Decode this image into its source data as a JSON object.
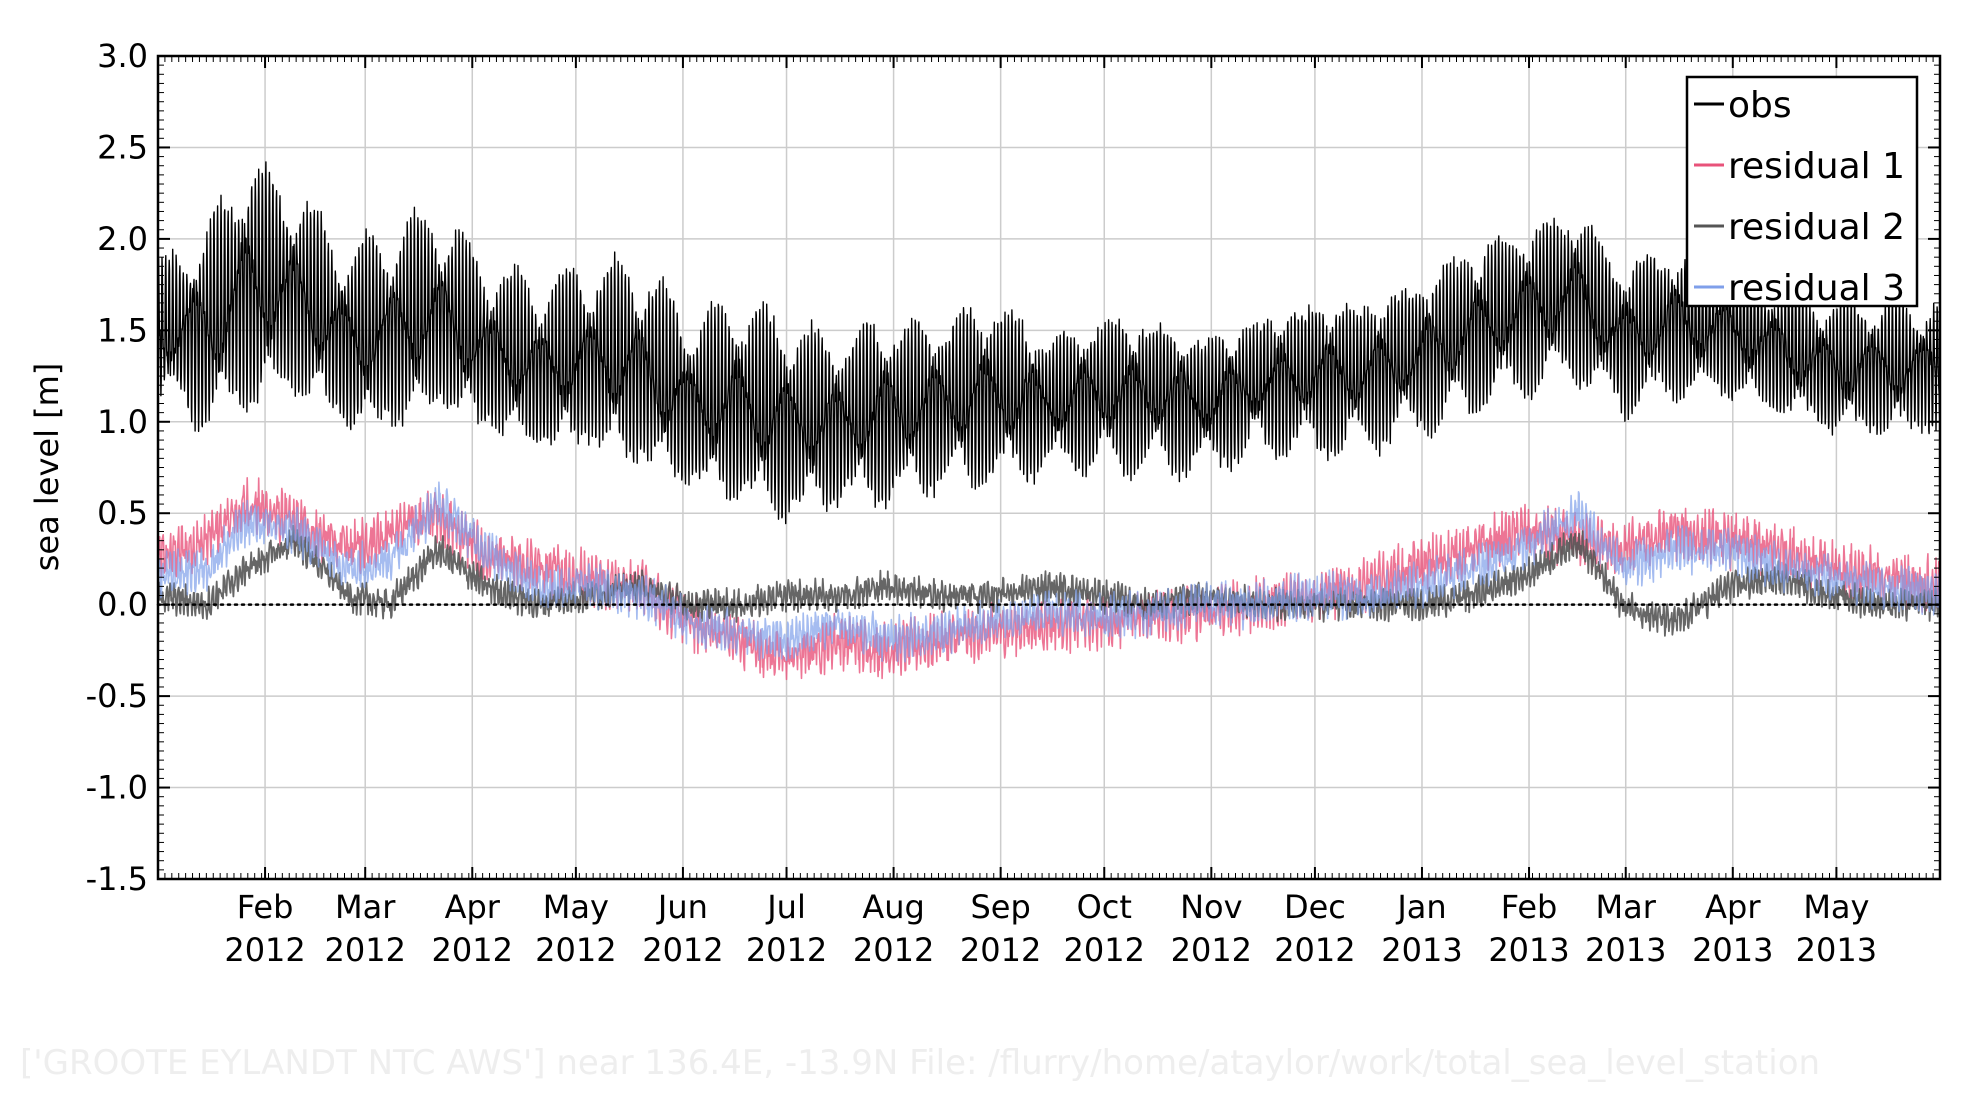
{
  "chart_data": {
    "type": "line",
    "title": "",
    "xlabel": "",
    "ylabel": "sea level [m]",
    "x_range": [
      "2012-01-01",
      "2013-05-31"
    ],
    "ylim": [
      -1.5,
      3.0
    ],
    "yticks": [
      {
        "value": -1.5,
        "label": "-1.5"
      },
      {
        "value": -1.0,
        "label": "-1.0"
      },
      {
        "value": -0.5,
        "label": "-0.5"
      },
      {
        "value": 0.0,
        "label": "0.0"
      },
      {
        "value": 0.5,
        "label": "0.5"
      },
      {
        "value": 1.0,
        "label": "1.0"
      },
      {
        "value": 1.5,
        "label": "1.5"
      },
      {
        "value": 2.0,
        "label": "2.0"
      },
      {
        "value": 2.5,
        "label": "2.5"
      },
      {
        "value": 3.0,
        "label": "3.0"
      }
    ],
    "xticks": [
      {
        "date": "2012-02-01",
        "month": "Feb",
        "year": "2012"
      },
      {
        "date": "2012-03-01",
        "month": "Mar",
        "year": "2012"
      },
      {
        "date": "2012-04-01",
        "month": "Apr",
        "year": "2012"
      },
      {
        "date": "2012-05-01",
        "month": "May",
        "year": "2012"
      },
      {
        "date": "2012-06-01",
        "month": "Jun",
        "year": "2012"
      },
      {
        "date": "2012-07-01",
        "month": "Jul",
        "year": "2012"
      },
      {
        "date": "2012-08-01",
        "month": "Aug",
        "year": "2012"
      },
      {
        "date": "2012-09-01",
        "month": "Sep",
        "year": "2012"
      },
      {
        "date": "2012-10-01",
        "month": "Oct",
        "year": "2012"
      },
      {
        "date": "2012-11-01",
        "month": "Nov",
        "year": "2012"
      },
      {
        "date": "2012-12-01",
        "month": "Dec",
        "year": "2012"
      },
      {
        "date": "2013-01-01",
        "month": "Jan",
        "year": "2013"
      },
      {
        "date": "2013-02-01",
        "month": "Feb",
        "year": "2013"
      },
      {
        "date": "2013-03-01",
        "month": "Mar",
        "year": "2013"
      },
      {
        "date": "2013-04-01",
        "month": "Apr",
        "year": "2013"
      },
      {
        "date": "2013-05-01",
        "month": "May",
        "year": "2013"
      }
    ],
    "grid": true,
    "zero_line": {
      "y": 0.0,
      "style": "dotted"
    },
    "legend": {
      "position": "top-right"
    },
    "series": [
      {
        "name": "obs",
        "color": "#000000",
        "x": [
          "2012-01-01",
          "2012-01-15",
          "2012-01-27",
          "2012-02-10",
          "2012-02-25",
          "2012-03-08",
          "2012-03-22",
          "2012-04-05",
          "2012-04-20",
          "2012-05-05",
          "2012-05-20",
          "2012-06-03",
          "2012-06-18",
          "2012-07-01",
          "2012-07-15",
          "2012-07-30",
          "2012-08-15",
          "2012-08-30",
          "2012-09-15",
          "2012-09-30",
          "2012-10-15",
          "2012-10-30",
          "2012-11-15",
          "2012-11-30",
          "2012-12-15",
          "2012-12-30",
          "2013-01-15",
          "2013-01-30",
          "2013-02-15",
          "2013-02-28",
          "2013-03-15",
          "2013-03-31",
          "2013-04-15",
          "2013-04-30",
          "2013-05-15",
          "2013-05-31"
        ],
        "y_high": [
          1.9,
          2.1,
          2.5,
          2.3,
          2.0,
          2.1,
          2.2,
          1.9,
          1.8,
          1.9,
          1.9,
          1.6,
          1.7,
          1.6,
          1.5,
          1.6,
          1.6,
          1.7,
          1.5,
          1.6,
          1.6,
          1.5,
          1.6,
          1.7,
          1.7,
          1.8,
          2.0,
          2.1,
          2.2,
          1.9,
          2.0,
          1.9,
          1.8,
          1.7,
          1.7,
          1.7
        ],
        "y_low": [
          1.1,
          0.9,
          1.0,
          1.1,
          0.9,
          0.9,
          1.0,
          0.9,
          0.8,
          0.8,
          0.7,
          0.6,
          0.5,
          0.4,
          0.5,
          0.5,
          0.6,
          0.6,
          0.7,
          0.7,
          0.7,
          0.7,
          0.8,
          0.8,
          0.8,
          0.9,
          1.0,
          1.1,
          1.2,
          1.0,
          1.1,
          1.1,
          1.0,
          0.9,
          0.9,
          0.9
        ]
      },
      {
        "name": "residual 1",
        "color": "#e8527a",
        "x": [
          "2012-01-01",
          "2012-01-15",
          "2012-01-27",
          "2012-02-10",
          "2012-02-25",
          "2012-03-08",
          "2012-03-22",
          "2012-04-05",
          "2012-04-20",
          "2012-05-05",
          "2012-05-20",
          "2012-06-03",
          "2012-06-18",
          "2012-07-01",
          "2012-07-15",
          "2012-07-30",
          "2012-08-15",
          "2012-08-30",
          "2012-09-15",
          "2012-09-30",
          "2012-10-15",
          "2012-10-30",
          "2012-11-15",
          "2012-11-30",
          "2012-12-15",
          "2012-12-30",
          "2013-01-15",
          "2013-01-30",
          "2013-02-15",
          "2013-02-28",
          "2013-03-15",
          "2013-03-31",
          "2013-04-15",
          "2013-04-30",
          "2013-05-15",
          "2013-05-31"
        ],
        "y": [
          0.25,
          0.35,
          0.55,
          0.45,
          0.3,
          0.4,
          0.5,
          0.25,
          0.2,
          0.15,
          0.1,
          -0.1,
          -0.2,
          -0.3,
          -0.2,
          -0.25,
          -0.2,
          -0.15,
          -0.1,
          -0.1,
          -0.05,
          -0.05,
          0.0,
          0.05,
          0.1,
          0.2,
          0.3,
          0.4,
          0.35,
          0.3,
          0.4,
          0.35,
          0.3,
          0.2,
          0.15,
          0.1
        ]
      },
      {
        "name": "residual 2",
        "color": "#555555",
        "x": [
          "2012-01-01",
          "2012-01-15",
          "2012-01-27",
          "2012-02-10",
          "2012-02-25",
          "2012-03-08",
          "2012-03-22",
          "2012-04-05",
          "2012-04-20",
          "2012-05-05",
          "2012-05-20",
          "2012-06-03",
          "2012-06-18",
          "2012-07-01",
          "2012-07-15",
          "2012-07-30",
          "2012-08-15",
          "2012-08-30",
          "2012-09-15",
          "2012-09-30",
          "2012-10-15",
          "2012-10-30",
          "2012-11-15",
          "2012-11-30",
          "2012-12-15",
          "2012-12-30",
          "2013-01-15",
          "2013-01-30",
          "2013-02-15",
          "2013-02-28",
          "2013-03-15",
          "2013-03-31",
          "2013-04-15",
          "2013-04-30",
          "2013-05-15",
          "2013-05-31"
        ],
        "y": [
          0.05,
          0.0,
          0.2,
          0.35,
          0.05,
          0.0,
          0.3,
          0.1,
          0.0,
          0.05,
          0.1,
          0.0,
          0.0,
          0.05,
          0.05,
          0.1,
          0.05,
          0.05,
          0.1,
          0.05,
          0.0,
          0.05,
          0.0,
          0.0,
          0.0,
          0.0,
          0.05,
          0.15,
          0.35,
          0.0,
          -0.1,
          0.1,
          0.15,
          0.05,
          0.0,
          0.0
        ]
      },
      {
        "name": "residual 3",
        "color": "#7f9fea",
        "x": [
          "2012-01-01",
          "2012-01-15",
          "2012-01-27",
          "2012-02-10",
          "2012-02-25",
          "2012-03-08",
          "2012-03-22",
          "2012-04-05",
          "2012-04-20",
          "2012-05-05",
          "2012-05-20",
          "2012-06-03",
          "2012-06-18",
          "2012-07-01",
          "2012-07-15",
          "2012-07-30",
          "2012-08-15",
          "2012-08-30",
          "2012-09-15",
          "2012-09-30",
          "2012-10-15",
          "2012-10-30",
          "2012-11-15",
          "2012-11-30",
          "2012-12-15",
          "2012-12-30",
          "2013-01-15",
          "2013-01-30",
          "2013-02-15",
          "2013-02-28",
          "2013-03-15",
          "2013-03-31",
          "2013-04-15",
          "2013-04-30",
          "2013-05-15",
          "2013-05-31"
        ],
        "y": [
          0.15,
          0.2,
          0.45,
          0.4,
          0.2,
          0.25,
          0.55,
          0.3,
          0.1,
          0.1,
          0.05,
          -0.1,
          -0.15,
          -0.2,
          -0.1,
          -0.2,
          -0.15,
          -0.1,
          -0.05,
          -0.05,
          -0.05,
          0.0,
          0.0,
          0.05,
          0.05,
          0.1,
          0.2,
          0.3,
          0.5,
          0.2,
          0.3,
          0.3,
          0.2,
          0.15,
          0.1,
          0.05
        ]
      }
    ]
  },
  "footer": "['GROOTE EYLANDT NTC AWS']    near 136.4E, -13.9N  File: /flurry/home/ataylor/work/total_sea_level_station"
}
